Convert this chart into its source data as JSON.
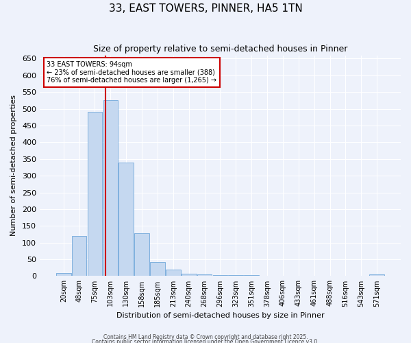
{
  "title": "33, EAST TOWERS, PINNER, HA5 1TN",
  "subtitle": "Size of property relative to semi-detached houses in Pinner",
  "xlabel": "Distribution of semi-detached houses by size in Pinner",
  "ylabel": "Number of semi-detached properties",
  "bar_color": "#c5d8f0",
  "bar_edge_color": "#5b9bd5",
  "background_color": "#eef2fb",
  "grid_color": "#ffffff",
  "categories": [
    "20sqm",
    "48sqm",
    "75sqm",
    "103sqm",
    "130sqm",
    "158sqm",
    "185sqm",
    "213sqm",
    "240sqm",
    "268sqm",
    "296sqm",
    "323sqm",
    "351sqm",
    "378sqm",
    "406sqm",
    "433sqm",
    "461sqm",
    "488sqm",
    "516sqm",
    "543sqm",
    "571sqm"
  ],
  "values": [
    10,
    120,
    490,
    525,
    340,
    128,
    42,
    20,
    8,
    5,
    3,
    2,
    2,
    1,
    1,
    1,
    1,
    0,
    0,
    0,
    5
  ],
  "ylim": [
    0,
    660
  ],
  "yticks": [
    0,
    50,
    100,
    150,
    200,
    250,
    300,
    350,
    400,
    450,
    500,
    550,
    600,
    650
  ],
  "property_size_sqm": 94,
  "bin_centers": [
    20,
    48,
    75,
    103,
    130,
    158,
    185,
    213,
    240,
    268,
    296,
    323,
    351,
    378,
    406,
    433,
    461,
    488,
    516,
    543,
    571
  ],
  "property_label": "33 EAST TOWERS: 94sqm",
  "smaller_pct": "23%",
  "smaller_count": "388",
  "larger_pct": "76%",
  "larger_count": "1,265",
  "red_line_color": "#cc0000",
  "annotation_box_color": "#ffffff",
  "annotation_box_edge": "#cc0000",
  "footer1": "Contains HM Land Registry data © Crown copyright and database right 2025.",
  "footer2": "Contains public sector information licensed under the Open Government Licence v3.0."
}
